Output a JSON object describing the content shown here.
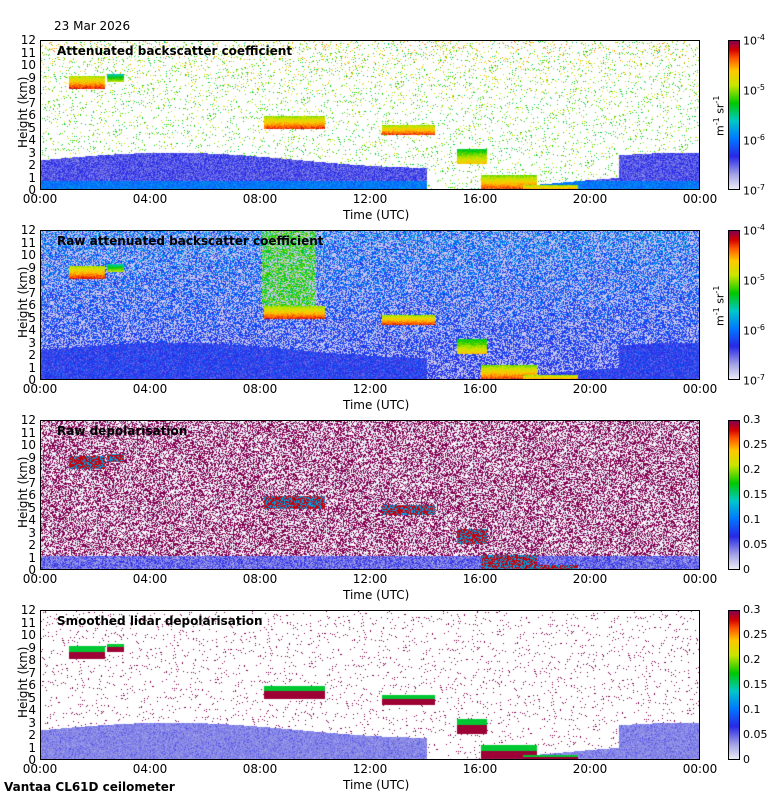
{
  "date": "23 Mar 2026",
  "footer": "Vantaa CL61D ceilometer",
  "colors": {
    "cloud_red": "#c80000",
    "magenta": "#8b0048",
    "blue": "#2a2aff",
    "green": "#00c000",
    "yellow": "#ffff00"
  },
  "chart_data": [
    {
      "type": "heatmap",
      "title": "Attenuated backscatter coefficient",
      "xlabel": "Time (UTC)",
      "ylabel": "Height (km)",
      "xticks": [
        "00:00",
        "04:00",
        "08:00",
        "12:00",
        "16:00",
        "20:00",
        "00:00"
      ],
      "yticks": [
        "0",
        "1",
        "2",
        "3",
        "4",
        "5",
        "6",
        "7",
        "8",
        "9",
        "10",
        "11",
        "12"
      ],
      "ylim": [
        0,
        12
      ],
      "colorbar": {
        "scale": "log",
        "range": [
          1e-07,
          0.0001
        ],
        "labels": [
          "10-4",
          "10-5",
          "10-6",
          "10-7"
        ],
        "unit": "m-1 sr-1"
      }
    },
    {
      "type": "heatmap",
      "title": "Raw attenuated backscatter coefficient",
      "xlabel": "Time (UTC)",
      "ylabel": "Height (km)",
      "xticks": [
        "00:00",
        "04:00",
        "08:00",
        "12:00",
        "16:00",
        "20:00",
        "00:00"
      ],
      "yticks": [
        "0",
        "1",
        "2",
        "3",
        "4",
        "5",
        "6",
        "7",
        "8",
        "9",
        "10",
        "11",
        "12"
      ],
      "ylim": [
        0,
        12
      ],
      "colorbar": {
        "scale": "log",
        "range": [
          1e-07,
          0.0001
        ],
        "labels": [
          "10-4",
          "10-5",
          "10-6",
          "10-7"
        ],
        "unit": "m-1 sr-1"
      }
    },
    {
      "type": "heatmap",
      "title": "Raw depolarisation",
      "xlabel": "Time (UTC)",
      "ylabel": "Height (km)",
      "xticks": [
        "00:00",
        "04:00",
        "08:00",
        "12:00",
        "16:00",
        "20:00",
        "00:00"
      ],
      "yticks": [
        "0",
        "1",
        "2",
        "3",
        "4",
        "5",
        "6",
        "7",
        "8",
        "9",
        "10",
        "11",
        "12"
      ],
      "ylim": [
        0,
        12
      ],
      "colorbar": {
        "scale": "linear",
        "range": [
          0,
          0.3
        ],
        "labels": [
          "0.3",
          "0.25",
          "0.2",
          "0.15",
          "0.1",
          "0.05",
          "0"
        ]
      }
    },
    {
      "type": "heatmap",
      "title": "Smoothed lidar depolarisation",
      "xlabel": "Time (UTC)",
      "ylabel": "Height (km)",
      "xticks": [
        "00:00",
        "04:00",
        "08:00",
        "12:00",
        "16:00",
        "20:00",
        "00:00"
      ],
      "yticks": [
        "0",
        "1",
        "2",
        "3",
        "4",
        "5",
        "6",
        "7",
        "8",
        "9",
        "10",
        "11",
        "12"
      ],
      "ylim": [
        0,
        12
      ],
      "colorbar": {
        "scale": "linear",
        "range": [
          0,
          0.3
        ],
        "labels": [
          "0.3",
          "0.25",
          "0.2",
          "0.15",
          "0.1",
          "0.05",
          "0"
        ]
      }
    }
  ]
}
